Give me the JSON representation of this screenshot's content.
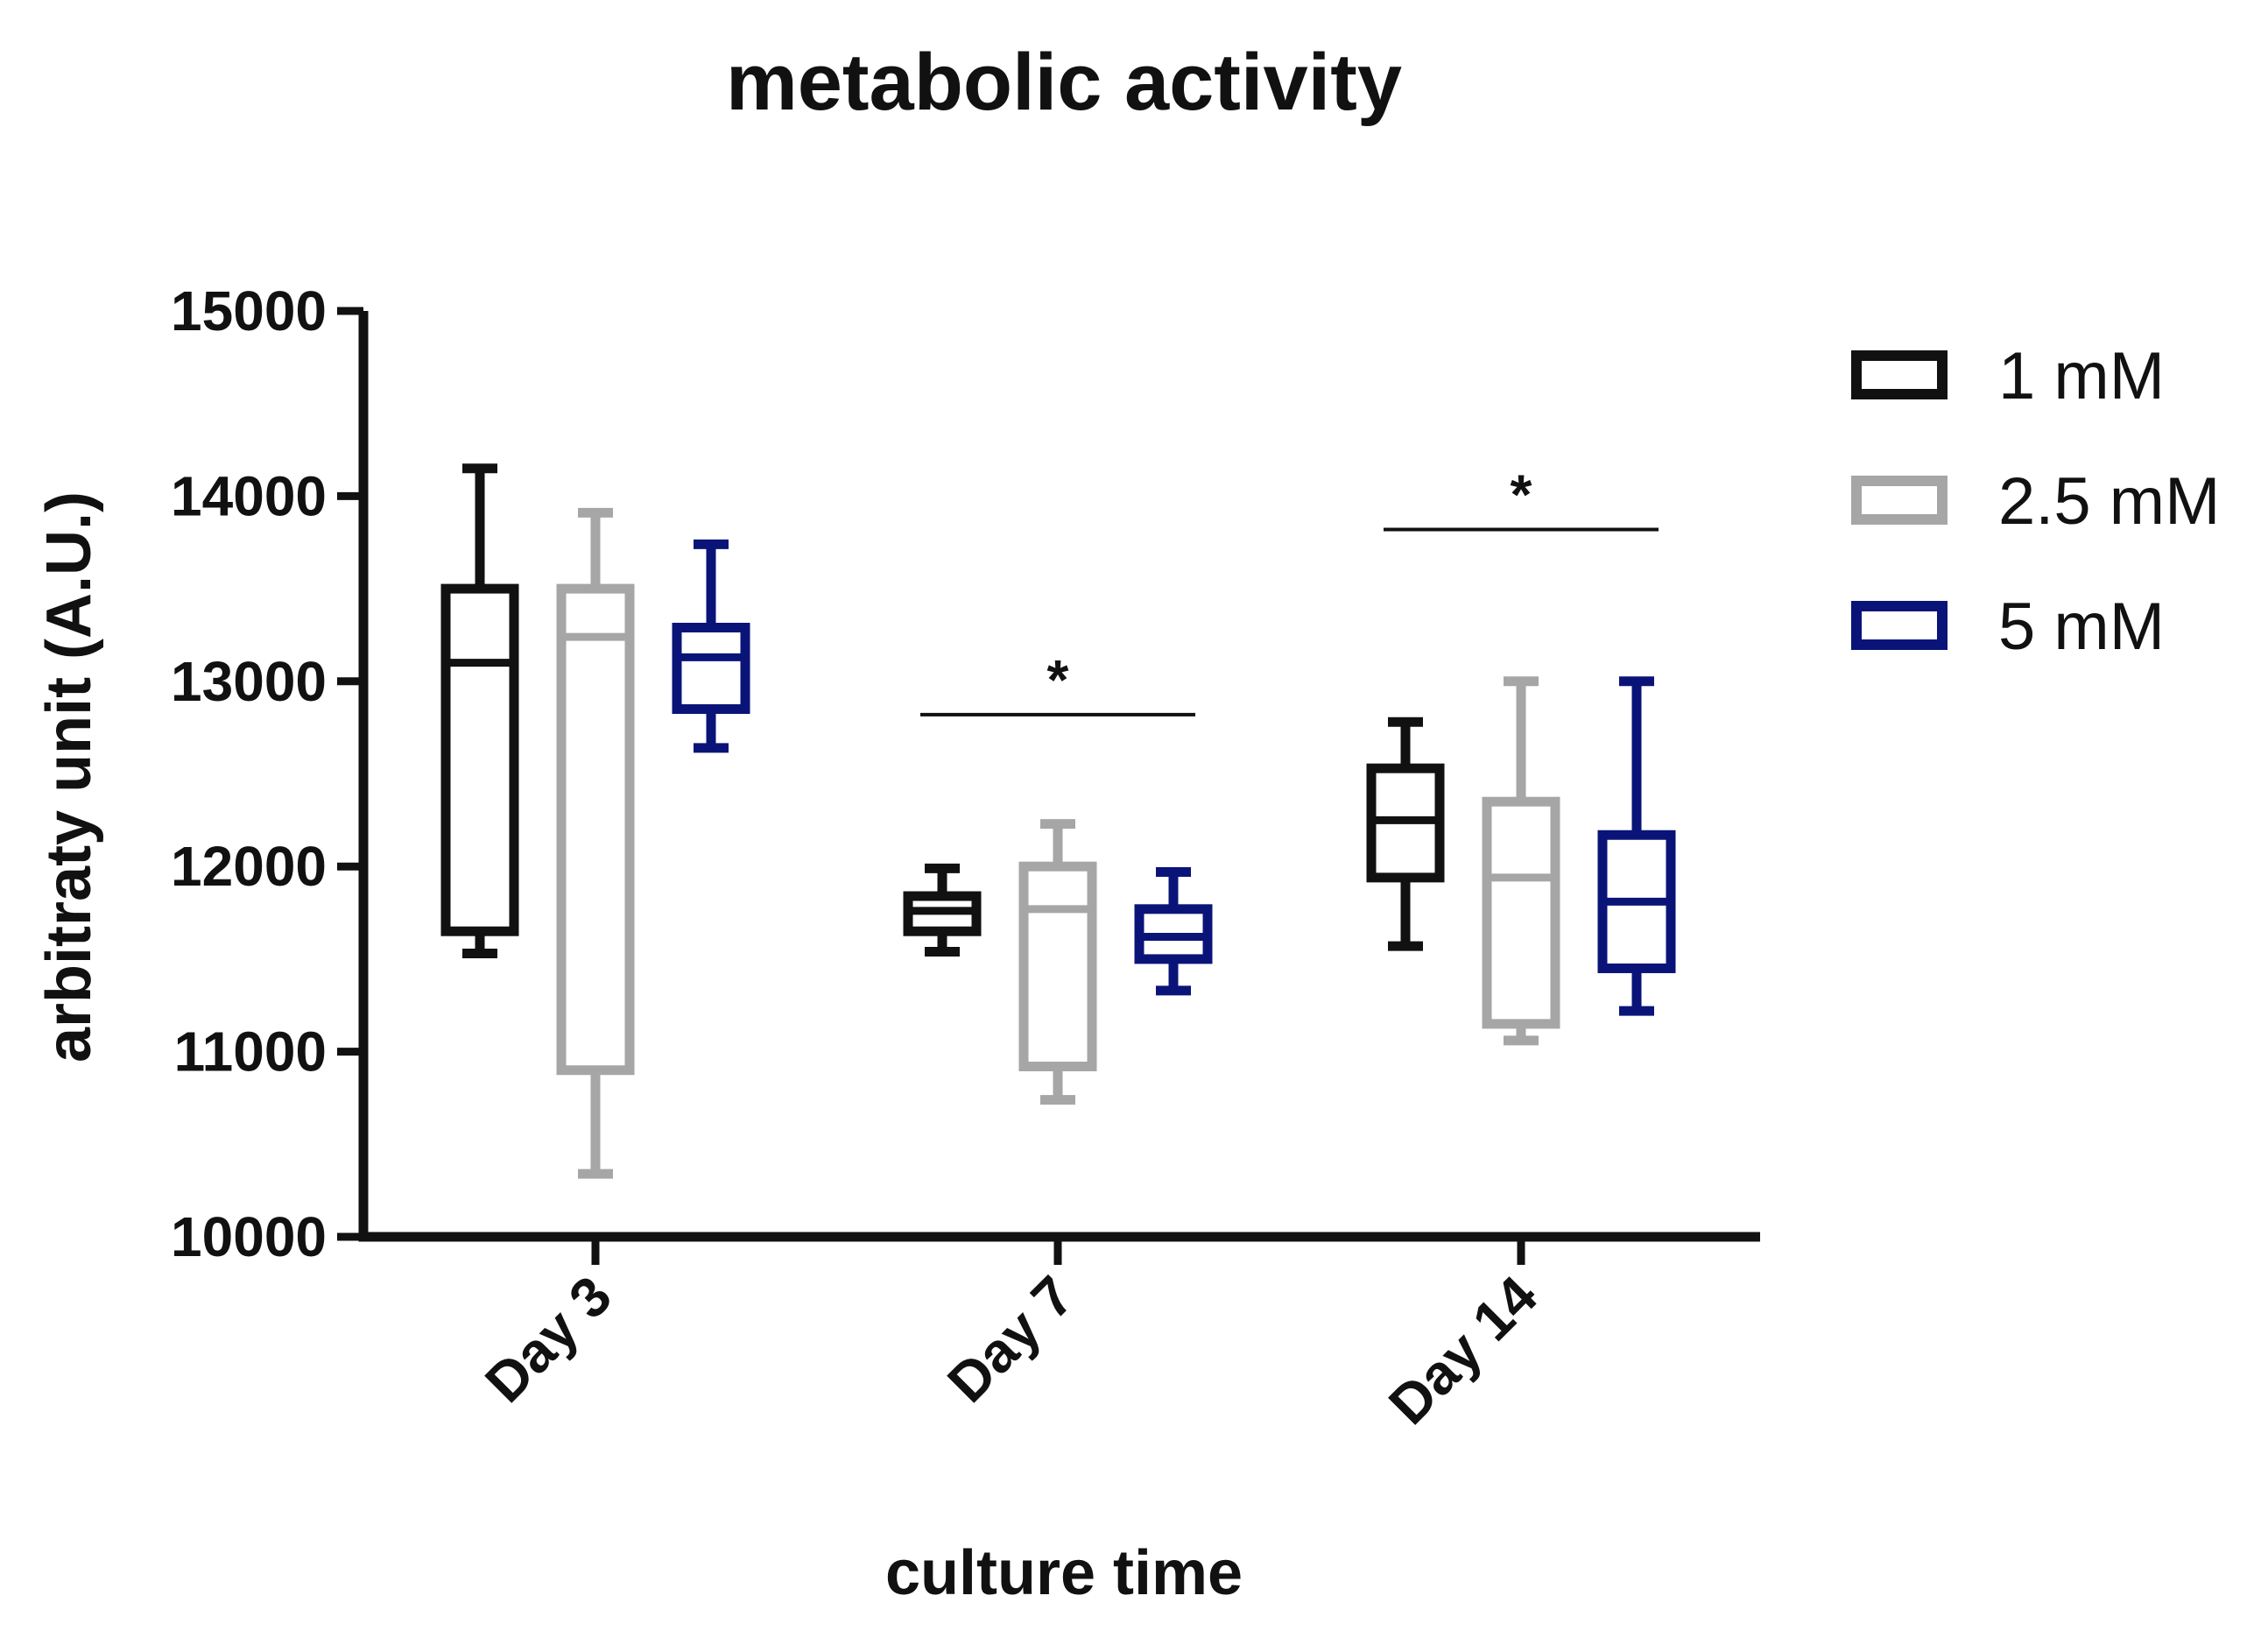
{
  "chart_data": {
    "type": "box",
    "title": "metabolic activity",
    "xlabel": "culture time",
    "ylabel": "arbitraty unit (A.U.)",
    "ylim": [
      10000,
      15000
    ],
    "yticks": [
      10000,
      11000,
      12000,
      13000,
      14000,
      15000
    ],
    "ytick_labels": [
      "10000",
      "11000",
      "12000",
      "13000",
      "14000",
      "15000"
    ],
    "categories": [
      "Day 3",
      "Day 7",
      "Day 14"
    ],
    "legend_position": "right",
    "series": [
      {
        "name": "1 mM",
        "color": "#111111",
        "boxes": [
          {
            "min": 11530,
            "q1": 11650,
            "median": 13100,
            "q3": 13500,
            "max": 14150
          },
          {
            "min": 11540,
            "q1": 11650,
            "median": 11760,
            "q3": 11840,
            "max": 11990
          },
          {
            "min": 11570,
            "q1": 11940,
            "median": 12250,
            "q3": 12530,
            "max": 12780
          }
        ]
      },
      {
        "name": "2.5 mM",
        "color": "#a6a6a6",
        "boxes": [
          {
            "min": 10340,
            "q1": 10900,
            "median": 13240,
            "q3": 13500,
            "max": 13910
          },
          {
            "min": 10740,
            "q1": 10920,
            "median": 11770,
            "q3": 12000,
            "max": 12230
          },
          {
            "min": 11060,
            "q1": 11150,
            "median": 11940,
            "q3": 12350,
            "max": 13000
          }
        ]
      },
      {
        "name": "5 mM",
        "color": "#0a1478",
        "boxes": [
          {
            "min": 12640,
            "q1": 12850,
            "median": 13130,
            "q3": 13290,
            "max": 13740
          },
          {
            "min": 11330,
            "q1": 11500,
            "median": 11620,
            "q3": 11770,
            "max": 11970
          },
          {
            "min": 11220,
            "q1": 11450,
            "median": 11810,
            "q3": 12170,
            "max": 13000
          }
        ]
      }
    ],
    "significance": [
      {
        "category": "Day 7",
        "label": "*",
        "value": 12820
      },
      {
        "category": "Day 14",
        "label": "*",
        "value": 13820
      }
    ]
  }
}
